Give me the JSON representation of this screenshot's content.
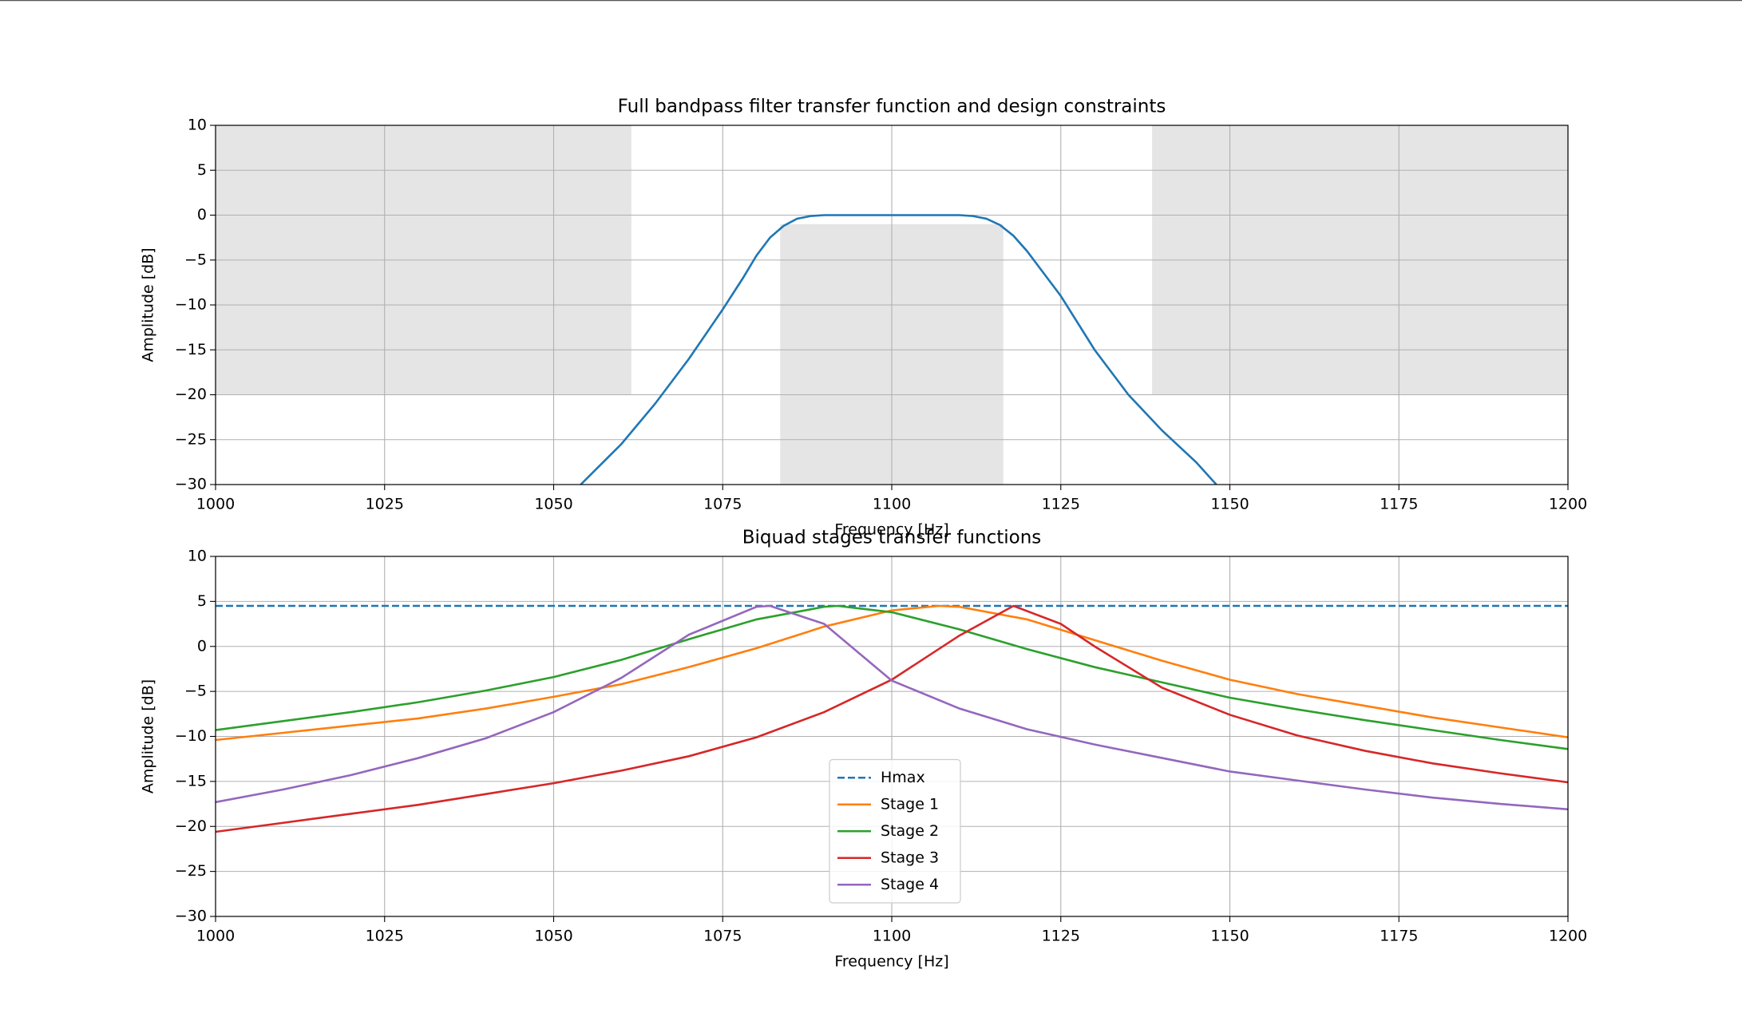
{
  "chart_data": [
    {
      "type": "line",
      "title": "Full bandpass filter transfer function and design constraints",
      "xlabel": "Frequency [Hz]",
      "ylabel": "Amplitude [dB]",
      "xlim": [
        1000,
        1200
      ],
      "ylim": [
        -30,
        10
      ],
      "xticks": [
        1000,
        1025,
        1050,
        1075,
        1100,
        1125,
        1150,
        1175,
        1200
      ],
      "yticks": [
        10,
        5,
        0,
        {
          "value": -5,
          "label": "−5"
        },
        {
          "value": -10,
          "label": "−10"
        },
        {
          "value": -15,
          "label": "−15"
        },
        {
          "value": -20,
          "label": "−20"
        },
        {
          "value": -25,
          "label": "−25"
        },
        {
          "value": -30,
          "label": "−30"
        }
      ],
      "grid": true,
      "regions": [
        {
          "x": [
            1000,
            1061.5
          ],
          "y": [
            -20,
            10
          ],
          "color": "#e5e5e5"
        },
        {
          "x": [
            1083.5,
            1116.5
          ],
          "y": [
            -30,
            -1
          ],
          "color": "#e5e5e5"
        },
        {
          "x": [
            1138.5,
            1200
          ],
          "y": [
            -20,
            10
          ],
          "color": "#e5e5e5"
        }
      ],
      "series": [
        {
          "color": "#1f77b4",
          "x": [
            1054,
            1060,
            1065,
            1070,
            1075,
            1078,
            1080,
            1082,
            1084,
            1086,
            1088,
            1090,
            1100,
            1110,
            1112,
            1114,
            1116,
            1118,
            1120,
            1122,
            1125,
            1130,
            1135,
            1140,
            1145,
            1148
          ],
          "values": [
            -30,
            -25.5,
            -21,
            -16,
            -10.5,
            -7,
            -4.5,
            -2.5,
            -1.2,
            -0.4,
            -0.1,
            0,
            0,
            0,
            -0.1,
            -0.4,
            -1.1,
            -2.3,
            -4,
            -6,
            -9,
            -15,
            -20,
            -24,
            -27.5,
            -30
          ]
        }
      ]
    },
    {
      "type": "line",
      "title": "Biquad stages transfer functions",
      "xlabel": "Frequency [Hz]",
      "ylabel": "Amplitude [dB]",
      "xlim": [
        1000,
        1200
      ],
      "ylim": [
        -30,
        10
      ],
      "xticks": [
        1000,
        1025,
        1050,
        1075,
        1100,
        1125,
        1150,
        1175,
        1200
      ],
      "yticks": [
        10,
        5,
        0,
        {
          "value": -5,
          "label": "−5"
        },
        {
          "value": -10,
          "label": "−10"
        },
        {
          "value": -15,
          "label": "−15"
        },
        {
          "value": -20,
          "label": "−20"
        },
        {
          "value": -25,
          "label": "−25"
        },
        {
          "value": -30,
          "label": "−30"
        }
      ],
      "grid": true,
      "legend": "lower center",
      "series": [
        {
          "name": "Hmax",
          "color": "#1f77b4",
          "style": "dashed",
          "x": [
            1000,
            1200
          ],
          "values": [
            4.5,
            4.5
          ]
        },
        {
          "name": "Stage 1",
          "color": "#ff7f0e",
          "x": [
            1000,
            1010,
            1020,
            1030,
            1040,
            1050,
            1060,
            1070,
            1080,
            1090,
            1100,
            1107,
            1110,
            1120,
            1130,
            1140,
            1150,
            1160,
            1170,
            1180,
            1190,
            1200
          ],
          "values": [
            -10.4,
            -9.6,
            -8.8,
            -8,
            -6.9,
            -5.6,
            -4.2,
            -2.3,
            -0.2,
            2.2,
            4.0,
            4.5,
            4.4,
            3.0,
            0.7,
            -1.6,
            -3.7,
            -5.3,
            -6.6,
            -7.9,
            -9.0,
            -10.1
          ]
        },
        {
          "name": "Stage 2",
          "color": "#2ca02c",
          "x": [
            1000,
            1010,
            1020,
            1030,
            1040,
            1050,
            1060,
            1070,
            1080,
            1090,
            1092,
            1100,
            1110,
            1120,
            1130,
            1140,
            1150,
            1160,
            1170,
            1180,
            1190,
            1200
          ],
          "values": [
            -9.3,
            -8.3,
            -7.3,
            -6.2,
            -4.9,
            -3.4,
            -1.5,
            0.8,
            3.0,
            4.4,
            4.5,
            3.8,
            1.9,
            -0.3,
            -2.3,
            -4.0,
            -5.7,
            -7.0,
            -8.2,
            -9.3,
            -10.4,
            -11.4
          ]
        },
        {
          "name": "Stage 3",
          "color": "#d62728",
          "x": [
            1000,
            1010,
            1020,
            1030,
            1040,
            1050,
            1060,
            1070,
            1080,
            1090,
            1100,
            1110,
            1118,
            1125,
            1130,
            1140,
            1150,
            1160,
            1170,
            1180,
            1190,
            1200
          ],
          "values": [
            -20.6,
            -19.6,
            -18.6,
            -17.6,
            -16.4,
            -15.2,
            -13.8,
            -12.2,
            -10.1,
            -7.3,
            -3.7,
            1.2,
            4.5,
            2.5,
            0,
            -4.6,
            -7.6,
            -9.9,
            -11.6,
            -13,
            -14.1,
            -15.1
          ]
        },
        {
          "name": "Stage 4",
          "color": "#9467bd",
          "x": [
            1000,
            1010,
            1020,
            1030,
            1040,
            1050,
            1060,
            1070,
            1080,
            1082,
            1090,
            1100,
            1110,
            1120,
            1130,
            1140,
            1150,
            1160,
            1170,
            1180,
            1190,
            1200
          ],
          "values": [
            -17.3,
            -15.9,
            -14.3,
            -12.4,
            -10.2,
            -7.3,
            -3.5,
            1.3,
            4.4,
            4.5,
            2.5,
            -3.8,
            -6.9,
            -9.2,
            -10.9,
            -12.4,
            -13.9,
            -14.9,
            -15.9,
            -16.8,
            -17.5,
            -18.1
          ]
        }
      ]
    }
  ]
}
